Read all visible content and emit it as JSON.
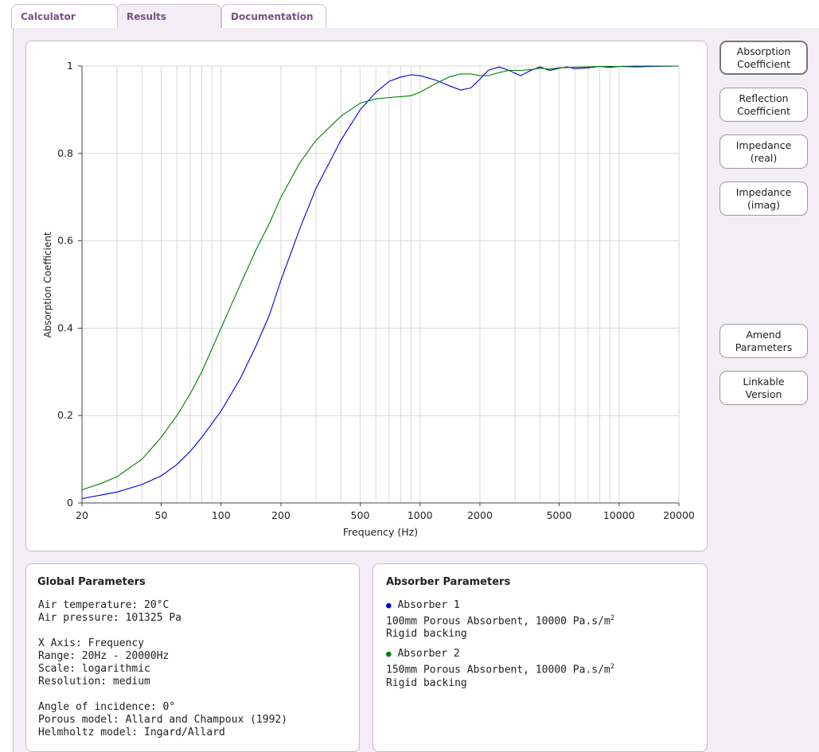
{
  "tabs": [
    {
      "label": "Calculator",
      "active": false
    },
    {
      "label": "Results",
      "active": true
    },
    {
      "label": "Documentation",
      "active": false
    }
  ],
  "side_buttons": {
    "absorption": "Absorption\nCoefficient",
    "reflection": "Reflection\nCoefficient",
    "impedance_real": "Impedance\n(real)",
    "impedance_imag": "Impedance\n(imag)",
    "amend": "Amend\nParameters",
    "linkable": "Linkable\nVersion"
  },
  "global": {
    "title": "Global Parameters",
    "air_temperature": "Air temperature: 20°C",
    "air_pressure": "Air pressure: 101325 Pa",
    "x_axis": "X Axis: Frequency",
    "range": "Range: 20Hz - 20000Hz",
    "scale": "Scale: logarithmic",
    "resolution": "Resolution: medium",
    "angle": "Angle of incidence: 0°",
    "porous_model": "Porous model: Allard and Champoux (1992)",
    "helmholtz_model": "Helmholtz model: Ingard/Allard"
  },
  "absorber": {
    "title": "Absorber Parameters",
    "items": [
      {
        "name": "Absorber 1",
        "color": "#0000dd",
        "desc": "100mm Porous Absorbent, 10000 Pa.s/m",
        "sup": "2",
        "backing": "Rigid backing"
      },
      {
        "name": "Absorber 2",
        "color": "#008000",
        "desc": "150mm Porous Absorbent, 10000 Pa.s/m",
        "sup": "2",
        "backing": "Rigid backing"
      }
    ]
  },
  "chart_data": {
    "type": "line",
    "xlabel": "Frequency (Hz)",
    "ylabel": "Absorption Coefficient",
    "x_scale": "log",
    "xlim": [
      20,
      20000
    ],
    "ylim": [
      0,
      1
    ],
    "x_ticks": [
      20,
      50,
      100,
      200,
      500,
      1000,
      2000,
      5000,
      10000,
      20000
    ],
    "x_tick_labels": [
      "20",
      "50",
      "100",
      "200",
      "500",
      "1000",
      "2000",
      "5000",
      "10000",
      "20000"
    ],
    "y_ticks": [
      0,
      0.2,
      0.4,
      0.6,
      0.8,
      1
    ],
    "y_tick_labels": [
      "0",
      "0.2",
      "0.4",
      "0.6",
      "0.8",
      "1"
    ],
    "grid": true,
    "series": [
      {
        "name": "Absorber 1",
        "color": "#0000dd",
        "x": [
          20,
          25,
          30,
          40,
          50,
          60,
          70,
          80,
          100,
          125,
          150,
          175,
          200,
          250,
          300,
          400,
          500,
          600,
          700,
          800,
          900,
          1000,
          1200,
          1400,
          1600,
          1800,
          2000,
          2200,
          2500,
          2800,
          3200,
          3600,
          4000,
          4500,
          5000,
          5500,
          6000,
          7000,
          8000,
          9000,
          10000,
          12000,
          15000,
          20000
        ],
        "y": [
          0.01,
          0.018,
          0.025,
          0.042,
          0.062,
          0.088,
          0.118,
          0.15,
          0.21,
          0.285,
          0.36,
          0.43,
          0.51,
          0.63,
          0.72,
          0.83,
          0.9,
          0.94,
          0.965,
          0.975,
          0.98,
          0.978,
          0.968,
          0.955,
          0.945,
          0.95,
          0.97,
          0.99,
          0.998,
          0.99,
          0.978,
          0.99,
          0.998,
          0.99,
          0.995,
          0.998,
          0.994,
          0.996,
          0.999,
          0.997,
          0.999,
          0.998,
          0.999,
          1.0
        ]
      },
      {
        "name": "Absorber 2",
        "color": "#008000",
        "x": [
          20,
          25,
          30,
          40,
          50,
          60,
          70,
          80,
          100,
          125,
          150,
          175,
          200,
          250,
          300,
          400,
          500,
          600,
          700,
          800,
          900,
          1000,
          1200,
          1400,
          1600,
          1800,
          2000,
          2200,
          2500,
          2800,
          3200,
          3600,
          4000,
          4500,
          5000,
          6000,
          7000,
          8000,
          10000,
          12000,
          15000,
          20000
        ],
        "y": [
          0.03,
          0.045,
          0.06,
          0.1,
          0.15,
          0.2,
          0.25,
          0.3,
          0.4,
          0.5,
          0.58,
          0.64,
          0.7,
          0.78,
          0.83,
          0.885,
          0.915,
          0.925,
          0.928,
          0.93,
          0.932,
          0.94,
          0.96,
          0.975,
          0.982,
          0.982,
          0.978,
          0.978,
          0.985,
          0.99,
          0.99,
          0.992,
          0.995,
          0.993,
          0.996,
          0.997,
          0.998,
          0.999,
          0.999,
          1.0,
          1.0,
          1.0
        ]
      }
    ]
  }
}
